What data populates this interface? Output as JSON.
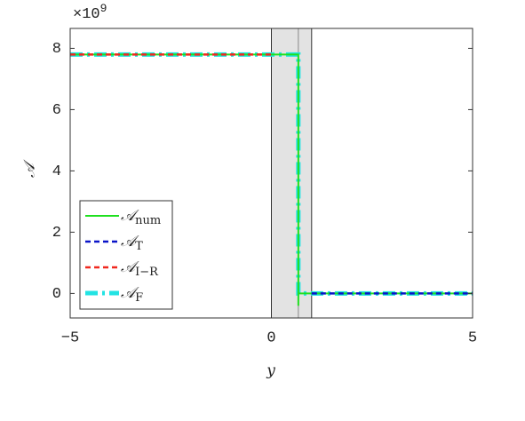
{
  "chart_data": {
    "type": "line",
    "xlabel": "y",
    "ylabel": "𝒜",
    "y_multiplier": "×10",
    "y_multiplier_exp": "9",
    "xlim": [
      -5,
      5
    ],
    "ylim": [
      -0.8,
      8.65
    ],
    "xticks": [
      {
        "value": -5,
        "label": "−5"
      },
      0,
      5
    ],
    "yticks": [
      0,
      2,
      4,
      6,
      8
    ],
    "grid": false,
    "shaded_region": [
      0,
      1
    ],
    "reference_line_x": 0.67,
    "legend": "lower left",
    "series": [
      {
        "name": "𝒜",
        "subscript": "num",
        "color": "#1fe01f",
        "dash": "solid",
        "x": [
          -5,
          0.67,
          0.67,
          0.67,
          5
        ],
        "values": [
          7.8,
          7.8,
          -0.4,
          0,
          0
        ]
      },
      {
        "name": "𝒜",
        "subscript": "T",
        "color": "#0a14c8",
        "dash": "dashed",
        "x": [
          1,
          5
        ],
        "values": [
          0,
          0
        ]
      },
      {
        "name": "𝒜",
        "subscript": "I−R",
        "color": "#f0281e",
        "dash": "dashed",
        "x": [
          -5,
          0
        ],
        "values": [
          7.8,
          7.8
        ]
      },
      {
        "name": "𝒜",
        "subscript": "F",
        "color": "#22e3e3",
        "dash": "dashdot",
        "x": [
          -5,
          0.67,
          0.67,
          5
        ],
        "values": [
          7.8,
          7.8,
          0,
          0
        ]
      }
    ]
  }
}
